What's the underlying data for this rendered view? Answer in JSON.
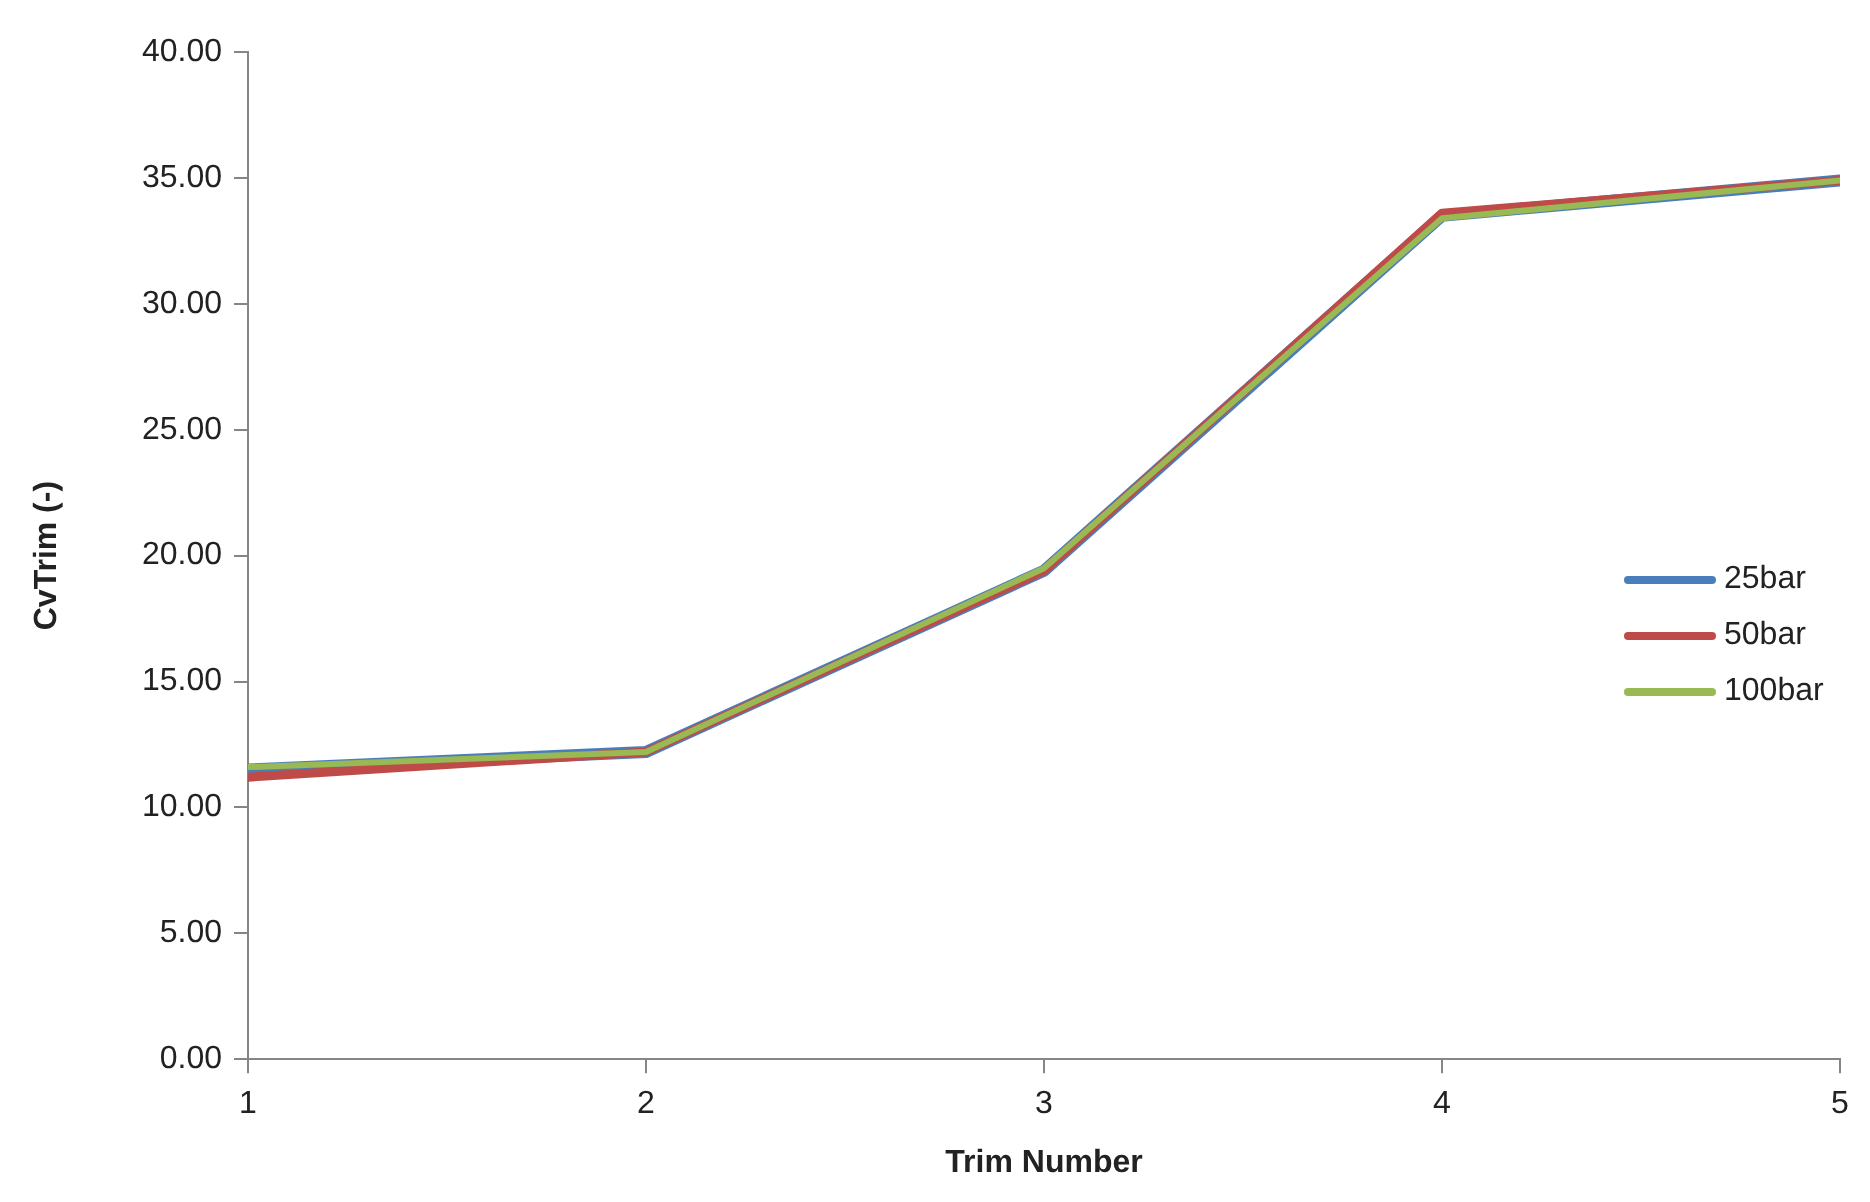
{
  "chart_data": {
    "type": "line",
    "xlabel": "Trim Number",
    "ylabel": "CvTrim (-)",
    "x": [
      1,
      2,
      3,
      4,
      5
    ],
    "xlim": [
      1,
      5
    ],
    "xticks": [
      1,
      2,
      3,
      4,
      5
    ],
    "ylim": [
      0,
      40
    ],
    "yticks": [
      {
        "value": 0,
        "label": "0.00"
      },
      {
        "value": 5,
        "label": "5.00"
      },
      {
        "value": 10,
        "label": "10.00"
      },
      {
        "value": 15,
        "label": "15.00"
      },
      {
        "value": 20,
        "label": "20.00"
      },
      {
        "value": 25,
        "label": "25.00"
      },
      {
        "value": 30,
        "label": "30.00"
      },
      {
        "value": 35,
        "label": "35.00"
      },
      {
        "value": 40,
        "label": "40.00"
      }
    ],
    "grid": false,
    "legend": "right",
    "marker": "none",
    "line_style": "solid",
    "series": [
      {
        "name": "25bar",
        "color": "#4a7ebb",
        "values": [
          11.5,
          12.2,
          19.4,
          33.5,
          34.9
        ]
      },
      {
        "name": "50bar",
        "color": "#be4b48",
        "values": [
          11.2,
          12.2,
          19.4,
          33.6,
          34.9
        ]
      },
      {
        "name": "100bar",
        "color": "#98b954",
        "values": [
          11.6,
          12.2,
          19.5,
          33.4,
          34.9
        ]
      }
    ]
  }
}
